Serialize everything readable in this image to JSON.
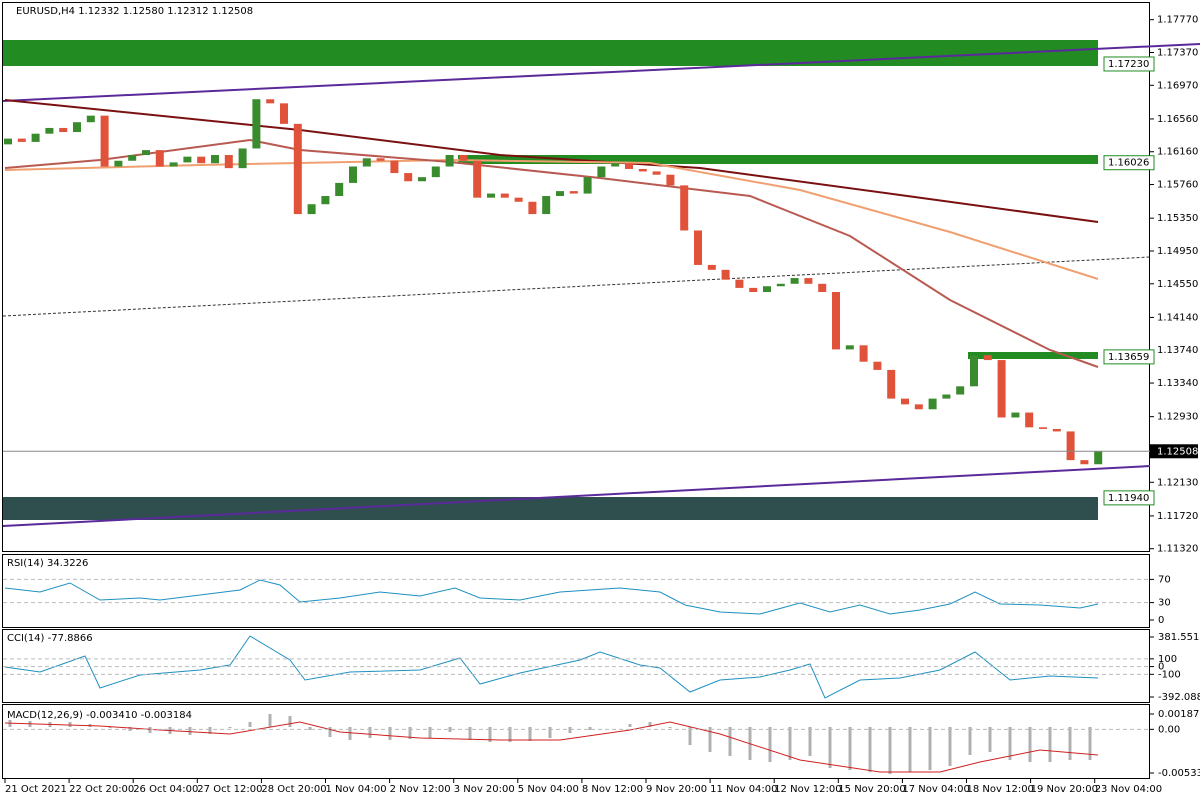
{
  "header": "EURUSD,H4  1.12332 1.12580 1.12312 1.12508",
  "chart_data": {
    "type": "candlestick",
    "open": 1.1625,
    "closes": [
      1.1632,
      1.1628,
      1.1638,
      1.1645,
      1.164,
      1.1652,
      1.166,
      1.1598,
      1.1605,
      1.1612,
      1.1618,
      1.1598,
      1.1603,
      1.161,
      1.1602,
      1.1612,
      1.1596,
      1.162,
      1.168,
      1.1675,
      1.165,
      1.154,
      1.1552,
      1.1562,
      1.1578,
      1.1598,
      1.1608,
      1.1605,
      1.159,
      1.158,
      1.1585,
      1.1598,
      1.1612,
      1.1605,
      1.156,
      1.1565,
      1.156,
      1.1555,
      1.154,
      1.1562,
      1.1568,
      1.1565,
      1.1585,
      1.1598,
      1.1602,
      1.1595,
      1.1592,
      1.1588,
      1.1575,
      1.152,
      1.1478,
      1.1472,
      1.146,
      1.145,
      1.1445,
      1.1452,
      1.1455,
      1.1462,
      1.1455,
      1.1445,
      1.1375,
      1.138,
      1.136,
      1.135,
      1.1315,
      1.1308,
      1.1302,
      1.1315,
      1.132,
      1.133,
      1.1368,
      1.1362,
      1.1292,
      1.1298,
      1.128,
      1.1278,
      1.1275,
      1.124,
      1.1235,
      1.1251
    ],
    "up_color": "#3a8a2e",
    "down_color": "#e0523a",
    "ylim": [
      1.1128,
      1.1801
    ],
    "yticks": [
      {
        "value": 1.1777,
        "label": "1.17770"
      },
      {
        "value": 1.1737,
        "label": "1.17370"
      },
      {
        "value": 1.1697,
        "label": "1.16970"
      },
      {
        "value": 1.1656,
        "label": "1.16560"
      },
      {
        "value": 1.1616,
        "label": "1.16160"
      },
      {
        "value": 1.1576,
        "label": "1.15760"
      },
      {
        "value": 1.1535,
        "label": "1.15350"
      },
      {
        "value": 1.1495,
        "label": "1.14950"
      },
      {
        "value": 1.1455,
        "label": "1.14550"
      },
      {
        "value": 1.1414,
        "label": "1.14140"
      },
      {
        "value": 1.1374,
        "label": "1.13740"
      },
      {
        "value": 1.1334,
        "label": "1.13340"
      },
      {
        "value": 1.1293,
        "label": "1.12930"
      },
      {
        "value": 1.1213,
        "label": "1.12130"
      },
      {
        "value": 1.1172,
        "label": "1.11720"
      },
      {
        "value": 1.1132,
        "label": "1.11320"
      }
    ],
    "levels": [
      {
        "value": 1.1723,
        "label": "1.17230"
      },
      {
        "value": 1.16026,
        "label": "1.16026"
      },
      {
        "value": 1.13659,
        "label": "1.13659"
      },
      {
        "value": 1.1194,
        "label": "1.11940"
      }
    ],
    "last": {
      "value": 1.12508,
      "label": "1.12508"
    },
    "time_labels": [
      "21 Oct 2021",
      "22 Oct 20:00",
      "26 Oct 04:00",
      "27 Oct 12:00",
      "28 Oct 20:00",
      "1 Nov 04:00",
      "2 Nov 12:00",
      "3 Nov 20:00",
      "5 Nov 04:00",
      "8 Nov 12:00",
      "9 Nov 20:00",
      "11 Nov 04:00",
      "12 Nov 12:00",
      "15 Nov 20:00",
      "17 Nov 04:00",
      "18 Nov 12:00",
      "19 Nov 20:00",
      "23 Nov 04:00"
    ]
  },
  "indicators": [
    {
      "title": "RSI(14) 34.3226",
      "ylim": [
        0,
        100
      ],
      "yticks": [
        70,
        30,
        0
      ]
    },
    {
      "title": "CCI(14) -77.8866",
      "ylim": [
        -392.0881,
        381.551
      ],
      "yticks": [
        381.551,
        100,
        0,
        -100,
        -392.0881
      ]
    },
    {
      "title": "MACD(12,26,9) -0.003410 -0.003184",
      "ylim": [
        -0.005336,
        0.001876
      ],
      "yticks": [
        0.001876,
        {
          "value": 0,
          "label": "0.00"
        },
        -0.005336
      ]
    }
  ]
}
